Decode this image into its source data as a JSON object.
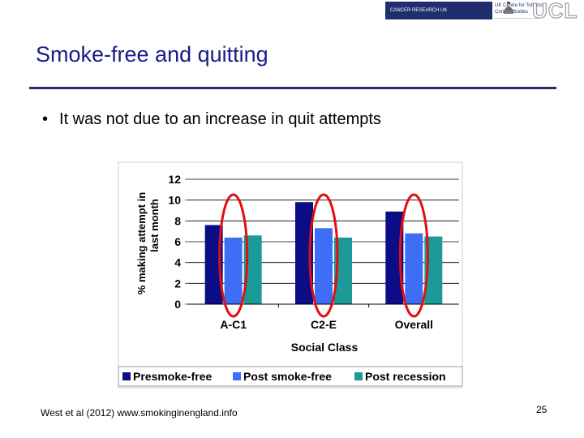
{
  "slide": {
    "title": "Smoke-free and quitting",
    "bullet": "It was not due to an increase in quit attempts",
    "citation": "West et al (2012) www.smokinginengland.info",
    "page_number": "25"
  },
  "logos": {
    "cancer_research_uk": "CANCER RESEARCH UK",
    "tobacco_centre": "UK Centre for Tobacco Control Studies",
    "ucl": "UCL"
  },
  "chart_data": {
    "type": "bar",
    "categories": [
      "A-C1",
      "C2-E",
      "Overall"
    ],
    "series": [
      {
        "name": "Presmoke-free",
        "values": [
          7.6,
          9.8,
          8.9
        ],
        "color": "#0c0c86"
      },
      {
        "name": "Post smoke-free",
        "values": [
          6.4,
          7.3,
          6.8
        ],
        "color": "#3d6ef5"
      },
      {
        "name": "Post recession",
        "values": [
          6.6,
          6.4,
          6.5
        ],
        "color": "#1b9a98"
      }
    ],
    "xlabel": "Social Class",
    "ylabel_lines": [
      "% making attempt in",
      "last month"
    ],
    "ylim": [
      0,
      12
    ],
    "yticks": [
      "0",
      "2",
      "4",
      "6",
      "8",
      "10",
      "12"
    ],
    "grid": "horizontal",
    "legend_position": "bottom",
    "highlight_color": "#e01010",
    "highlighted_series": "Post smoke-free"
  }
}
